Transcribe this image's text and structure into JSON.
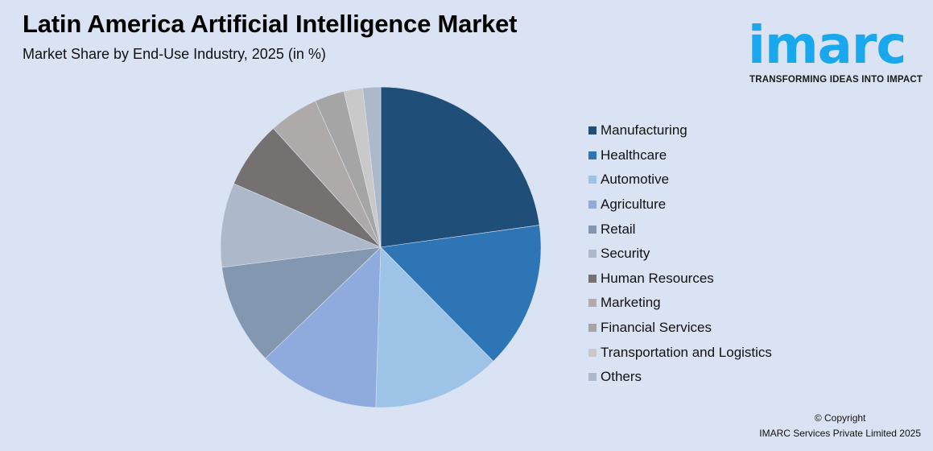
{
  "header": {
    "title": "Latin America Artificial Intelligence Market",
    "subtitle": "Market Share by End-Use Industry, 2025 (in %)"
  },
  "logo": {
    "wordmark": "imarc",
    "tagline": "TRANSFORMING IDEAS INTO IMPACT",
    "color": "#19a7ee"
  },
  "footer": {
    "copyright_line1": "© Copyright",
    "copyright_line2": "IMARC Services Private Limited 2025"
  },
  "chart_data": {
    "type": "pie",
    "title": "Latin America Artificial Intelligence Market",
    "subtitle": "Market Share by End-Use Industry, 2025 (in %)",
    "legend_position": "right",
    "start_angle_deg": 0,
    "direction": "clockwise",
    "categories": [
      "Manufacturing",
      "Healthcare",
      "Automotive",
      "Agriculture",
      "Retail",
      "Security",
      "Human Resources",
      "Marketing",
      "Financial Services",
      "Transportation and Logistics",
      "Others"
    ],
    "values": [
      22.8,
      14.8,
      12.9,
      12.3,
      10.2,
      8.5,
      6.8,
      5.0,
      3.0,
      1.9,
      1.8
    ],
    "colors": [
      "#1f4e79",
      "#2e75b6",
      "#9dc3e6",
      "#8faadc",
      "#8497b0",
      "#adb9ca",
      "#767171",
      "#aeaaaa",
      "#a5a5a5",
      "#c9c9c9",
      "#adb9ca"
    ],
    "data_labels": false
  }
}
